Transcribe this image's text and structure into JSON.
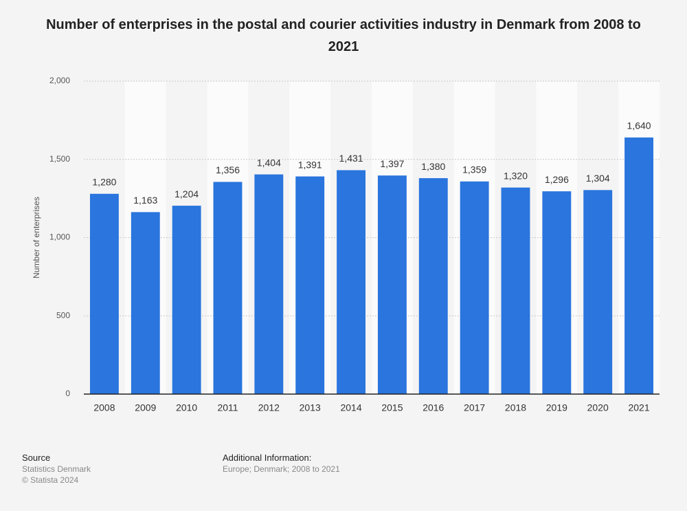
{
  "chart_data": {
    "type": "bar",
    "title": "Number of enterprises in the postal and courier activities industry in Denmark from 2008 to 2021",
    "y_label": "Number of enterprises",
    "categories": [
      "2008",
      "2009",
      "2010",
      "2011",
      "2012",
      "2013",
      "2014",
      "2015",
      "2016",
      "2017",
      "2018",
      "2019",
      "2020",
      "2021"
    ],
    "values": [
      1280,
      1163,
      1204,
      1356,
      1404,
      1391,
      1431,
      1397,
      1380,
      1359,
      1320,
      1296,
      1304,
      1640
    ],
    "value_labels": [
      "1,280",
      "1,163",
      "1,204",
      "1,356",
      "1,404",
      "1,391",
      "1,431",
      "1,397",
      "1,380",
      "1,359",
      "1,320",
      "1,296",
      "1,304",
      "1,640"
    ],
    "color": "#2a75de",
    "ylim": [
      0,
      2000
    ],
    "yticks": [
      0,
      500,
      {
        "value": 1000,
        "label": "1,000"
      },
      {
        "value": 1500,
        "label": "1,500"
      },
      {
        "value": 2000,
        "label": "2,000"
      }
    ],
    "grid": true
  },
  "footer": {
    "source_heading": "Source",
    "source": "Statistics Denmark",
    "copyright": "© Statista 2024",
    "info_heading": "Additional Information:",
    "info": "Europe; Denmark; 2008 to 2021"
  }
}
